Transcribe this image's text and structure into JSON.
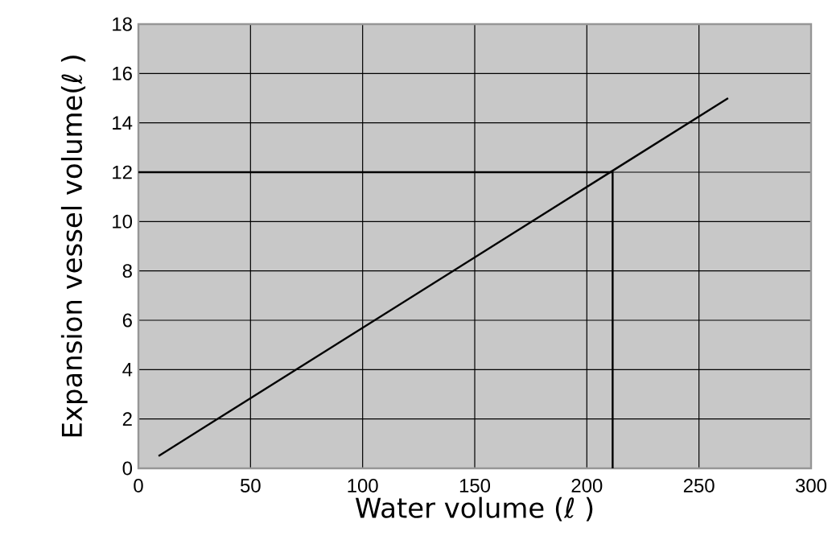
{
  "chart_data": {
    "type": "line",
    "xlabel": "Water volume (ℓ )",
    "ylabel": "Expansion vessel volume(ℓ )",
    "xlim": [
      0,
      300
    ],
    "xticks": [
      0,
      50,
      100,
      150,
      200,
      250,
      300
    ],
    "ylim": [
      0,
      18
    ],
    "yticks": [
      0,
      2,
      4,
      6,
      8,
      10,
      12,
      14,
      16,
      18
    ],
    "grid": true,
    "line_style": "solid",
    "marker": "none",
    "series": [
      {
        "color": "#000000",
        "x": [
          9,
          263
        ],
        "values": [
          0.5,
          15
        ]
      },
      {
        "color": "#000000",
        "x": [
          0,
          211.5,
          211.5
        ],
        "values": [
          12,
          12,
          0
        ]
      }
    ]
  }
}
